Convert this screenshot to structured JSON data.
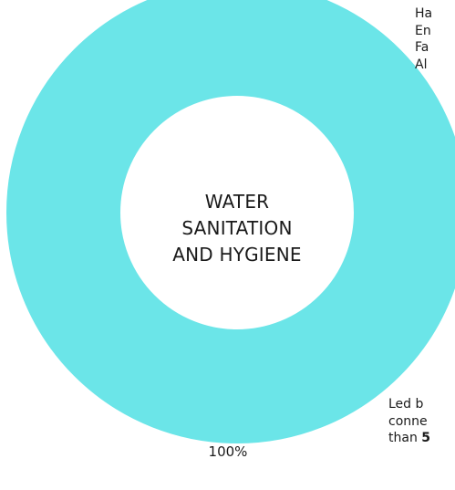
{
  "chart_data": {
    "type": "pie",
    "style": "donut",
    "categories": [
      "WATER SANITATION AND HYGIENE"
    ],
    "values": [
      100
    ],
    "colors": [
      "#6be5e8"
    ],
    "center_label_lines": [
      "WATER",
      "SANITATION",
      "AND HYGIENE"
    ],
    "data_label": "100%",
    "title": "",
    "grid": false
  },
  "side_text": {
    "top_right_lines": [
      "Ha",
      "En",
      "Fa",
      "Al"
    ],
    "bottom_right_lines": [
      "Led b",
      "conne"
    ],
    "bottom_right_last_prefix": "than ",
    "bottom_right_last_bold": "5"
  }
}
